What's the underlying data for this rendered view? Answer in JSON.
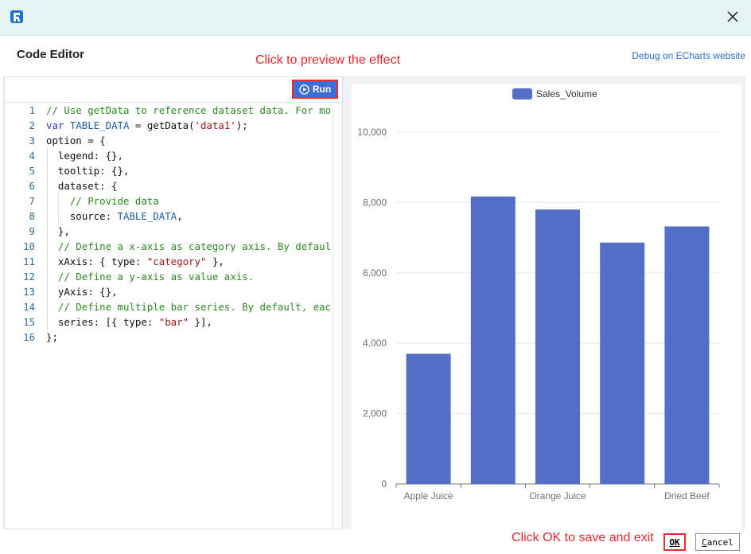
{
  "window": {
    "title": "Code Editor",
    "debug_link": "Debug on ECharts website",
    "annotation_run": "Click to preview the effect",
    "annotation_ok": "Click OK to save and exit",
    "ok_label": "OK",
    "cancel_first": "C",
    "cancel_rest": "ancel",
    "icons": [
      "app-logo-icon",
      "close-icon",
      "play-icon"
    ]
  },
  "editor": {
    "run_label": "Run",
    "lines": [
      {
        "n": "1",
        "parts": [
          {
            "t": "// Use getData to reference dataset data. For more",
            "c": "c-comment"
          }
        ]
      },
      {
        "n": "2",
        "parts": [
          {
            "t": "var",
            "c": "c-kw"
          },
          {
            "t": " ",
            "c": ""
          },
          {
            "t": "TABLE_DATA",
            "c": "c-var"
          },
          {
            "t": " = getData(",
            "c": ""
          },
          {
            "t": "'data1'",
            "c": "c-str"
          },
          {
            "t": ");",
            "c": ""
          }
        ]
      },
      {
        "n": "3",
        "parts": [
          {
            "t": "option = {",
            "c": ""
          }
        ]
      },
      {
        "n": "4",
        "parts": [
          {
            "t": "  legend: {},",
            "c": ""
          }
        ]
      },
      {
        "n": "5",
        "parts": [
          {
            "t": "  tooltip: {},",
            "c": ""
          }
        ]
      },
      {
        "n": "6",
        "parts": [
          {
            "t": "  dataset: {",
            "c": ""
          }
        ]
      },
      {
        "n": "7",
        "parts": [
          {
            "t": "    // Provide data",
            "c": "c-comment"
          }
        ]
      },
      {
        "n": "8",
        "parts": [
          {
            "t": "    source: ",
            "c": ""
          },
          {
            "t": "TABLE_DATA",
            "c": "c-var"
          },
          {
            "t": ",",
            "c": ""
          }
        ]
      },
      {
        "n": "9",
        "parts": [
          {
            "t": "  },",
            "c": ""
          }
        ]
      },
      {
        "n": "10",
        "parts": [
          {
            "t": "  // Define a x-axis as category axis. By default,",
            "c": "c-comment"
          }
        ]
      },
      {
        "n": "11",
        "parts": [
          {
            "t": "  xAxis: { type: ",
            "c": ""
          },
          {
            "t": "\"category\"",
            "c": "c-str"
          },
          {
            "t": " },",
            "c": ""
          }
        ]
      },
      {
        "n": "12",
        "parts": [
          {
            "t": "  // Define a y-axis as value axis.",
            "c": "c-comment"
          }
        ]
      },
      {
        "n": "13",
        "parts": [
          {
            "t": "  yAxis: {},",
            "c": ""
          }
        ]
      },
      {
        "n": "14",
        "parts": [
          {
            "t": "  // Define multiple bar series. By default, each",
            "c": "c-comment"
          }
        ]
      },
      {
        "n": "15",
        "parts": [
          {
            "t": "  series: [{ type: ",
            "c": ""
          },
          {
            "t": "\"bar\"",
            "c": "c-str"
          },
          {
            "t": " }],",
            "c": ""
          }
        ]
      },
      {
        "n": "16",
        "parts": [
          {
            "t": "};",
            "c": ""
          }
        ]
      }
    ]
  },
  "chart_data": {
    "type": "bar",
    "legend": [
      "Sales_Volume"
    ],
    "legend_position": "top-center",
    "categories": [
      "Apple Juice",
      "",
      "Orange Juice",
      "",
      "Dried Beef"
    ],
    "series": [
      {
        "name": "Sales_Volume",
        "values": [
          3700,
          8170,
          7800,
          6860,
          7320
        ],
        "color": "#5470c6"
      }
    ],
    "ylim": [
      0,
      10000
    ],
    "yticks": [
      "0",
      "2,000",
      "4,000",
      "6,000",
      "8,000",
      "10,000"
    ],
    "grid": "horizontal"
  }
}
